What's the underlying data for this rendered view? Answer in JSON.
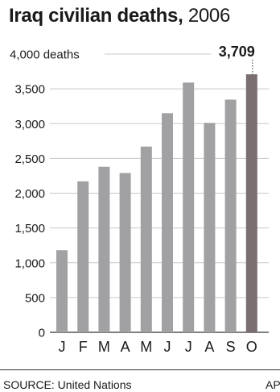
{
  "title": {
    "main": "Iraq civilian deaths,",
    "sub": " 2006"
  },
  "chart_data": {
    "type": "bar",
    "title": "Iraq civilian deaths, 2006",
    "categories": [
      "J",
      "F",
      "M",
      "A",
      "M",
      "J",
      "J",
      "A",
      "S",
      "O"
    ],
    "values": [
      1180,
      2170,
      2380,
      2290,
      2670,
      3150,
      3590,
      3010,
      3345,
      3709
    ],
    "ylim": [
      0,
      4000
    ],
    "yticks": [
      0,
      500,
      1000,
      1500,
      2000,
      2500,
      3000,
      3500,
      4000
    ],
    "ytick_labels": [
      "0",
      "500",
      "1,000",
      "1,500",
      "2,000",
      "2,500",
      "3,000",
      "3,500",
      "4,000 deaths"
    ],
    "grid": true,
    "highlight": {
      "index": 9,
      "label": "3,709"
    },
    "colors": {
      "bar": "#a1a1a3",
      "highlight": "#7a6e70",
      "grid": "#c8c8c8",
      "axis": "#333333",
      "text": "#1a1a1a"
    }
  },
  "footer": {
    "source": "SOURCE: United Nations",
    "credit": "AP"
  }
}
